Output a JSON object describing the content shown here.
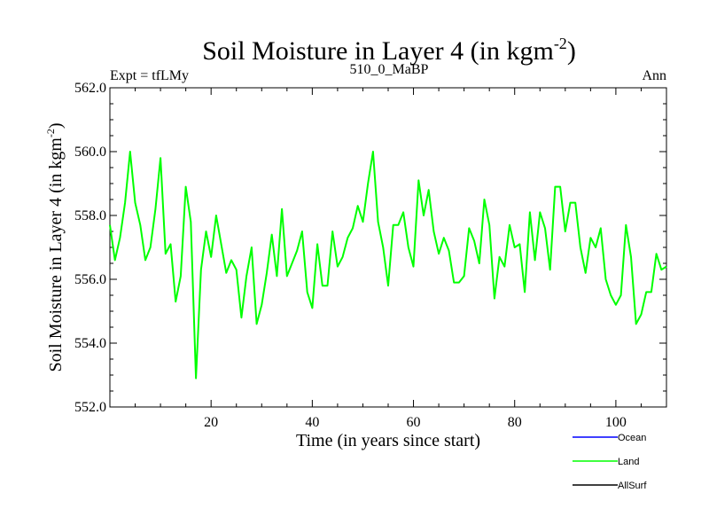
{
  "chart_data": {
    "type": "line",
    "title": "Soil Moisture in Layer 4 (in kgm",
    "title_sup": "-2",
    "title_close": ")",
    "subtitle_left": "Expt = tfLMy",
    "subtitle_center": "510_0_MaBP",
    "subtitle_right": "Ann",
    "xlabel": "Time (in years since start)",
    "ylabel": "Soil Moisture in Layer 4 (in kgm",
    "ylabel_sup": "-2",
    "ylabel_close": ")",
    "xlim": [
      0,
      110
    ],
    "ylim": [
      552.0,
      562.0
    ],
    "xticks": [
      20,
      40,
      60,
      80,
      100
    ],
    "xtick_labels": [
      "20",
      "40",
      "60",
      "80",
      "100"
    ],
    "yticks": [
      552.0,
      554.0,
      556.0,
      558.0,
      560.0,
      562.0
    ],
    "ytick_labels": [
      "552.0",
      "554.0",
      "556.0",
      "558.0",
      "560.0",
      "562.0"
    ],
    "legend": [
      {
        "name": "Ocean",
        "color": "#0000ff"
      },
      {
        "name": "Land",
        "color": "#00ff00"
      },
      {
        "name": "AllSurf",
        "color": "#000000"
      }
    ],
    "series": [
      {
        "name": "Land",
        "color": "#00ff00",
        "x": [
          0,
          1,
          2,
          3,
          4,
          5,
          6,
          7,
          8,
          9,
          10,
          11,
          12,
          13,
          14,
          15,
          16,
          17,
          18,
          19,
          20,
          21,
          22,
          23,
          24,
          25,
          26,
          27,
          28,
          29,
          30,
          31,
          32,
          33,
          34,
          35,
          36,
          37,
          38,
          39,
          40,
          41,
          42,
          43,
          44,
          45,
          46,
          47,
          48,
          49,
          50,
          51,
          52,
          53,
          54,
          55,
          56,
          57,
          58,
          59,
          60,
          61,
          62,
          63,
          64,
          65,
          66,
          67,
          68,
          69,
          70,
          71,
          72,
          73,
          74,
          75,
          76,
          77,
          78,
          79,
          80,
          81,
          82,
          83,
          84,
          85,
          86,
          87,
          88,
          89,
          90,
          91,
          92,
          93,
          94,
          95,
          96,
          97,
          98,
          99,
          100,
          101,
          102,
          103,
          104,
          105,
          106,
          107,
          108,
          109,
          110
        ],
        "values": [
          557.7,
          556.6,
          557.3,
          558.4,
          560.0,
          558.4,
          557.7,
          556.6,
          557.0,
          558.2,
          559.8,
          556.8,
          557.1,
          555.3,
          556.1,
          558.9,
          557.8,
          552.9,
          556.3,
          557.5,
          556.7,
          558.0,
          557.1,
          556.2,
          556.6,
          556.3,
          554.8,
          556.1,
          557.0,
          554.6,
          555.2,
          556.2,
          557.4,
          556.1,
          558.2,
          556.1,
          556.5,
          556.9,
          557.5,
          555.6,
          555.1,
          557.1,
          555.8,
          555.8,
          557.5,
          556.4,
          556.7,
          557.3,
          557.6,
          558.3,
          557.8,
          559.0,
          560.0,
          557.8,
          557.0,
          555.8,
          557.7,
          557.7,
          558.1,
          557.0,
          556.4,
          559.1,
          558.0,
          558.8,
          557.5,
          556.8,
          557.3,
          556.9,
          555.9,
          555.9,
          556.1,
          557.6,
          557.2,
          556.5,
          558.5,
          557.7,
          555.4,
          556.7,
          556.4,
          557.7,
          557.0,
          557.1,
          555.6,
          558.1,
          556.6,
          558.1,
          557.6,
          556.3,
          558.9,
          558.9,
          557.5,
          558.4,
          558.4,
          557.0,
          556.2,
          557.3,
          557.0,
          557.6,
          556.0,
          555.5,
          555.2,
          555.5,
          557.7,
          556.7,
          554.6,
          554.9,
          555.6,
          555.6,
          556.8,
          556.3,
          556.4
        ]
      }
    ]
  }
}
